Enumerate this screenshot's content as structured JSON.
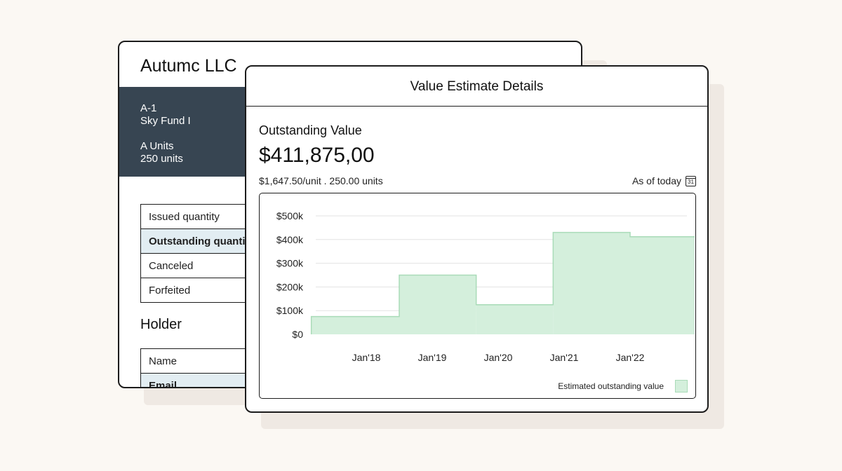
{
  "background_card": {
    "company": "Autumc LLC",
    "security_code": "A-1",
    "fund": "Sky Fund I",
    "unit_class": "A Units",
    "unit_count": "250 units",
    "quantities": [
      "Issued quantity",
      "Outstanding quantity",
      "Canceled",
      "Forfeited"
    ],
    "holder_heading": "Holder",
    "holder_rows": [
      "Name",
      "Email"
    ]
  },
  "modal": {
    "title": "Value Estimate Details",
    "outstanding_label": "Outstanding Value",
    "outstanding_value": "$411,875,00",
    "per_unit": "$1,647.50/unit . 250.00 units",
    "as_of": "As of today",
    "calendar_day": "31",
    "icons": {
      "calendar": "calendar-icon"
    }
  },
  "chart_data": {
    "type": "area",
    "style": "step",
    "color": "#d4efdc",
    "edge_color": "#a9dbb8",
    "grid": true,
    "legend_position": "bottom-right",
    "y_ticks": [
      "$500k",
      "$400k",
      "$300k",
      "$200k",
      "$100k",
      "$0"
    ],
    "x_ticks": [
      "Jan'18",
      "Jan'19",
      "Jan'20",
      "Jan'21",
      "Jan'22"
    ],
    "ylim": [
      0,
      500000
    ],
    "series": [
      {
        "name": "Estimated outstanding value",
        "steps": [
          {
            "start": "2017-03",
            "value": 75000
          },
          {
            "start": "2018-07",
            "value": 250000
          },
          {
            "start": "2019-09",
            "value": 125000
          },
          {
            "start": "2020-11",
            "value": 430000
          },
          {
            "start": "2022-01",
            "value": 412000
          }
        ],
        "end": "2023-03"
      }
    ]
  }
}
